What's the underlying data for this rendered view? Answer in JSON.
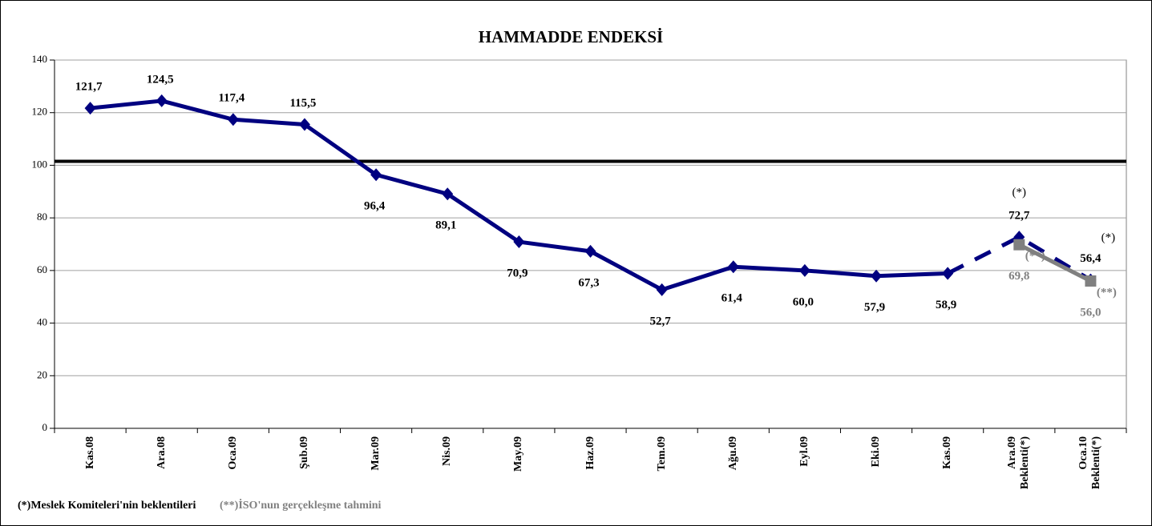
{
  "chart_data": {
    "type": "line",
    "title": "HAMMADDE ENDEKSİ",
    "categories": [
      "Kas.08",
      "Ara.08",
      "Oca.09",
      "Şub.09",
      "Mar.09",
      "Nis.09",
      "May.09",
      "Haz.09",
      "Tem.09",
      "Ağu.09",
      "Eyl.09",
      "Eki.09",
      "Kas.09",
      "Ara.09\nBeklenti(*)",
      "Oca.10\nBeklenti(*)"
    ],
    "series": [
      {
        "color": "#000080",
        "style": "solid",
        "marker": "diamond",
        "values": [
          121.7,
          124.5,
          117.4,
          115.5,
          96.4,
          89.1,
          70.9,
          67.3,
          52.7,
          61.4,
          60.0,
          57.9,
          58.9,
          null,
          null
        ],
        "value_labels": [
          "121,7",
          "124,5",
          "117,4",
          "115,5",
          "96,4",
          "89,1",
          "70,9",
          "67,3",
          "52,7",
          "61,4",
          "60,0",
          "57,9",
          "58,9",
          null,
          null
        ]
      },
      {
        "name": "(*)Meslek Komiteleri'nin beklentileri",
        "color": "#000080",
        "style": "dashed",
        "marker": "diamond",
        "values": [
          null,
          null,
          null,
          null,
          null,
          null,
          null,
          null,
          null,
          null,
          null,
          null,
          58.9,
          72.7,
          56.4
        ],
        "value_labels": [
          null,
          null,
          null,
          null,
          null,
          null,
          null,
          null,
          null,
          null,
          null,
          null,
          null,
          "72,7",
          "56,4"
        ],
        "notes": [
          null,
          null,
          null,
          null,
          null,
          null,
          null,
          null,
          null,
          null,
          null,
          null,
          null,
          "(*)",
          "(*)"
        ]
      },
      {
        "name": "(**)İSO'nun gerçekleşme tahmini",
        "color": "#808080",
        "style": "solid",
        "marker": "square",
        "values": [
          null,
          null,
          null,
          null,
          null,
          null,
          null,
          null,
          null,
          null,
          null,
          null,
          null,
          69.8,
          56.0
        ],
        "value_labels": [
          null,
          null,
          null,
          null,
          null,
          null,
          null,
          null,
          null,
          null,
          null,
          null,
          null,
          "69,8",
          "56,0"
        ],
        "notes": [
          null,
          null,
          null,
          null,
          null,
          null,
          null,
          null,
          null,
          null,
          null,
          null,
          null,
          "(**)",
          "(**)"
        ]
      }
    ],
    "reference_line": 101.5,
    "ylim": [
      0,
      140
    ],
    "yticks": [
      0,
      20,
      40,
      60,
      80,
      100,
      120,
      140
    ],
    "grid": true
  }
}
